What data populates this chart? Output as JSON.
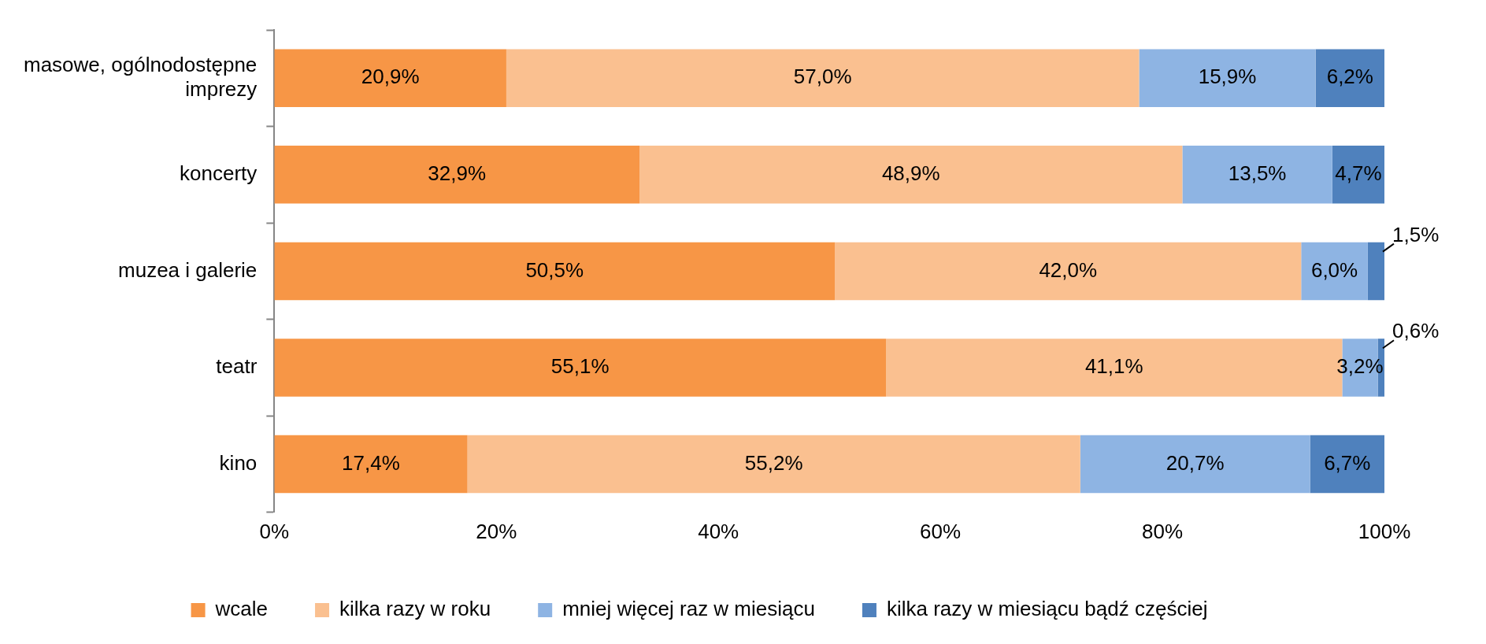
{
  "chart_data": {
    "type": "bar",
    "orientation": "horizontal",
    "stacked": true,
    "categories": [
      "masowe, ogólnodostępne imprezy",
      "koncerty",
      "muzea i galerie",
      "teatr",
      "kino"
    ],
    "series": [
      {
        "name": "wcale",
        "color": "#f79646",
        "values": [
          20.9,
          32.9,
          50.5,
          55.1,
          17.4
        ],
        "value_labels": [
          "20,9%",
          "32,9%",
          "50,5%",
          "55,1%",
          "17,4%"
        ]
      },
      {
        "name": "kilka razy w roku",
        "color": "#fac090",
        "values": [
          57.0,
          48.9,
          42.0,
          41.1,
          55.2
        ],
        "value_labels": [
          "57,0%",
          "48,9%",
          "42,0%",
          "41,1%",
          "55,2%"
        ]
      },
      {
        "name": "mniej więcej raz w miesiącu",
        "color": "#8eb4e3",
        "values": [
          15.9,
          13.5,
          6.0,
          3.2,
          20.7
        ],
        "value_labels": [
          "15,9%",
          "13,5%",
          "6,0%",
          "3,2%",
          "20,7%"
        ]
      },
      {
        "name": "kilka razy w miesiącu bądź częściej",
        "color": "#4f81bd",
        "values": [
          6.2,
          4.7,
          1.5,
          0.6,
          6.7
        ],
        "value_labels": [
          "6,2%",
          "4,7%",
          "1,5%",
          "0,6%",
          "6,7%"
        ]
      }
    ],
    "xlim": [
      0,
      100
    ],
    "xticks": [
      {
        "value": 0,
        "label": "0%"
      },
      {
        "value": 20,
        "label": "20%"
      },
      {
        "value": 40,
        "label": "40%"
      },
      {
        "value": 60,
        "label": "60%"
      },
      {
        "value": 80,
        "label": "80%"
      },
      {
        "value": 100,
        "label": "100%"
      }
    ],
    "grid": false,
    "legend": "bottom"
  }
}
